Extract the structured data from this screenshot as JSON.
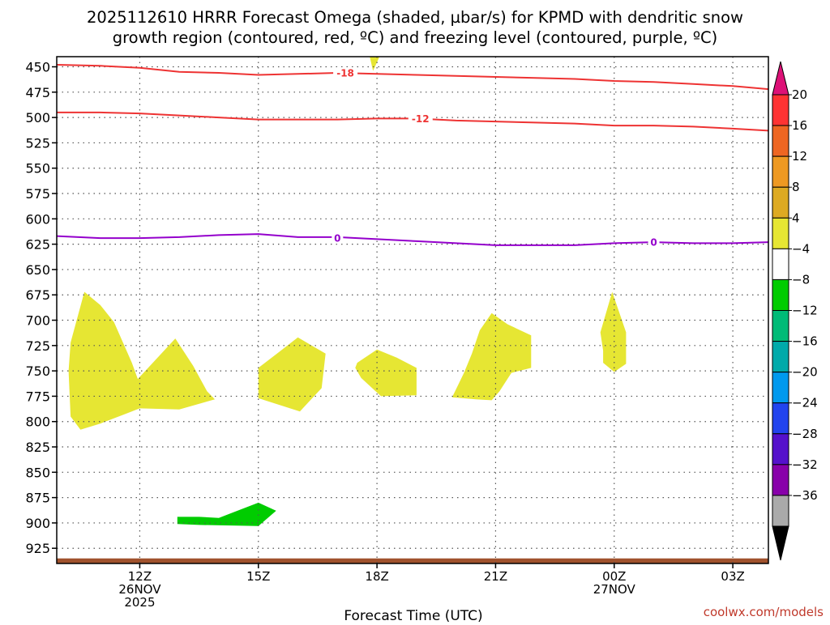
{
  "chart_data": {
    "type": "time-height",
    "title_line1": "2025112610 HRRR Forecast Omega (shaded, µbar/s) for KPMD with dendritic snow",
    "title_line2": "growth region (contoured, red, ºC) and freezing level (contoured, purple, ºC)",
    "xlabel": "Forecast Time (UTC)",
    "credit": "coolwx.com/models",
    "x_range_hours": [
      9.9,
      27.9
    ],
    "y_range_hpa": [
      440,
      940
    ],
    "y_ticks": [
      450,
      475,
      500,
      525,
      550,
      575,
      600,
      625,
      650,
      675,
      700,
      725,
      750,
      775,
      800,
      825,
      850,
      875,
      900,
      925
    ],
    "y_tick_labels": [
      "450",
      "475",
      "500",
      "525",
      "550",
      "575",
      "600",
      "625",
      "650",
      "675",
      "700",
      "725",
      "750",
      "775",
      "800",
      "825",
      "850",
      "875",
      "900",
      "925"
    ],
    "x_ticks": [
      {
        "hour": 12,
        "lines": [
          "12Z",
          "26NOV",
          "2025"
        ]
      },
      {
        "hour": 15,
        "lines": [
          "15Z"
        ]
      },
      {
        "hour": 18,
        "lines": [
          "18Z"
        ]
      },
      {
        "hour": 21,
        "lines": [
          "21Z"
        ]
      },
      {
        "hour": 24,
        "lines": [
          "00Z",
          "27NOV"
        ]
      },
      {
        "hour": 27,
        "lines": [
          "03Z"
        ]
      }
    ],
    "grid": true,
    "contours": [
      {
        "name": "dgz-minus18",
        "label": "-18",
        "color": "#ee3333",
        "label_at": [
          17.2,
          456
        ],
        "points": [
          [
            9.9,
            448
          ],
          [
            11,
            449
          ],
          [
            12,
            451
          ],
          [
            13,
            455
          ],
          [
            14,
            456
          ],
          [
            15,
            458
          ],
          [
            16,
            457
          ],
          [
            17,
            456
          ],
          [
            18,
            457
          ],
          [
            19,
            458
          ],
          [
            20,
            459
          ],
          [
            21,
            460
          ],
          [
            22,
            461
          ],
          [
            23,
            462
          ],
          [
            24,
            464
          ],
          [
            25,
            465
          ],
          [
            26,
            467
          ],
          [
            27,
            469
          ],
          [
            27.9,
            472
          ]
        ]
      },
      {
        "name": "dgz-minus12",
        "label": "-12",
        "color": "#ee3333",
        "label_at": [
          19.1,
          501
        ],
        "points": [
          [
            9.9,
            495
          ],
          [
            11,
            495
          ],
          [
            12,
            496
          ],
          [
            13,
            498
          ],
          [
            14,
            500
          ],
          [
            15,
            502
          ],
          [
            16,
            502
          ],
          [
            17,
            502
          ],
          [
            18,
            501
          ],
          [
            19,
            501
          ],
          [
            20,
            503
          ],
          [
            21,
            504
          ],
          [
            22,
            505
          ],
          [
            23,
            506
          ],
          [
            24,
            508
          ],
          [
            25,
            508
          ],
          [
            26,
            509
          ],
          [
            27,
            511
          ],
          [
            27.9,
            513
          ]
        ]
      },
      {
        "name": "freezing-level-0",
        "label": "0",
        "color": "#9400cc",
        "label_at": [
          [
            17.0,
            619
          ],
          [
            25.0,
            623
          ]
        ],
        "points": [
          [
            9.9,
            617
          ],
          [
            11,
            619
          ],
          [
            12,
            619
          ],
          [
            13,
            618
          ],
          [
            14,
            616
          ],
          [
            15,
            615
          ],
          [
            16,
            618
          ],
          [
            17,
            618
          ],
          [
            18,
            620
          ],
          [
            19,
            622
          ],
          [
            20,
            624
          ],
          [
            21,
            626
          ],
          [
            22,
            626
          ],
          [
            23,
            626
          ],
          [
            24,
            624
          ],
          [
            25,
            623
          ],
          [
            26,
            624
          ],
          [
            27,
            624
          ],
          [
            27.9,
            623
          ]
        ]
      }
    ],
    "shaded_regions": [
      {
        "name": "omega-4-8-a",
        "color": "#e6e633",
        "points": [
          [
            10.6,
            672
          ],
          [
            11.0,
            685
          ],
          [
            11.35,
            702
          ],
          [
            11.8,
            742
          ],
          [
            11.95,
            758
          ],
          [
            12.9,
            718
          ],
          [
            13.35,
            745
          ],
          [
            13.7,
            770
          ],
          [
            13.9,
            778
          ],
          [
            13.0,
            788
          ],
          [
            12.0,
            787
          ],
          [
            11.6,
            793
          ],
          [
            11.0,
            802
          ],
          [
            10.5,
            808
          ],
          [
            10.25,
            795
          ],
          [
            10.2,
            750
          ],
          [
            10.25,
            722
          ]
        ]
      },
      {
        "name": "omega-4-8-b",
        "color": "#e6e633",
        "points": [
          [
            16.0,
            717
          ],
          [
            16.7,
            733
          ],
          [
            16.6,
            767
          ],
          [
            16.05,
            790
          ],
          [
            15.0,
            777
          ],
          [
            15.0,
            747
          ],
          [
            15.5,
            732
          ]
        ]
      },
      {
        "name": "omega-4-8-c",
        "color": "#e6e633",
        "points": [
          [
            17.5,
            742
          ],
          [
            18.0,
            729
          ],
          [
            18.5,
            737
          ],
          [
            19.0,
            747
          ],
          [
            19.0,
            774
          ],
          [
            18.1,
            775
          ],
          [
            17.6,
            757
          ],
          [
            17.45,
            747
          ]
        ]
      },
      {
        "name": "omega-4-8-d",
        "color": "#e6e633",
        "points": [
          [
            20.9,
            693
          ],
          [
            21.3,
            704
          ],
          [
            21.9,
            715
          ],
          [
            21.9,
            747
          ],
          [
            21.4,
            752
          ],
          [
            21.1,
            770
          ],
          [
            20.9,
            779
          ],
          [
            20.5,
            778
          ],
          [
            19.9,
            776
          ],
          [
            20.2,
            752
          ],
          [
            20.4,
            733
          ],
          [
            20.6,
            710
          ]
        ]
      },
      {
        "name": "omega-4-8-e",
        "color": "#e6e633",
        "points": [
          [
            23.95,
            672
          ],
          [
            24.3,
            712
          ],
          [
            24.3,
            743
          ],
          [
            24.0,
            751
          ],
          [
            23.72,
            742
          ],
          [
            23.72,
            730
          ],
          [
            23.65,
            712
          ]
        ]
      },
      {
        "name": "omega-4-8-top",
        "color": "#e6e633",
        "points": [
          [
            17.8,
            437
          ],
          [
            18.1,
            437
          ],
          [
            17.9,
            454
          ]
        ]
      },
      {
        "name": "omega-neg4-neg8",
        "color": "#00cc00",
        "points": [
          [
            12.95,
            894
          ],
          [
            13.5,
            894
          ],
          [
            14.0,
            895
          ],
          [
            15.0,
            880
          ],
          [
            15.45,
            888
          ],
          [
            15.0,
            903
          ],
          [
            13.5,
            902
          ],
          [
            12.95,
            901
          ]
        ]
      }
    ],
    "terrain": {
      "name": "surface-terrain",
      "color": "#a0522d",
      "top_hpa": 935
    },
    "colorbar": {
      "labels": [
        "20",
        "16",
        "12",
        "8",
        "4",
        "−4",
        "−8",
        "−12",
        "−16",
        "−20",
        "−24",
        "−28",
        "−32",
        "−36"
      ],
      "top_arrow_color": "#dd1177",
      "bottom_arrow_color": "#000000",
      "bands": [
        "#ff3333",
        "#ee6622",
        "#ee9922",
        "#ddaa22",
        "#e6e633",
        "#ffffff",
        "#00cc00",
        "#00bb77",
        "#00aaaa",
        "#0099ee",
        "#2244ee",
        "#5511cc",
        "#8800aa",
        "#aaaaaa"
      ]
    }
  }
}
